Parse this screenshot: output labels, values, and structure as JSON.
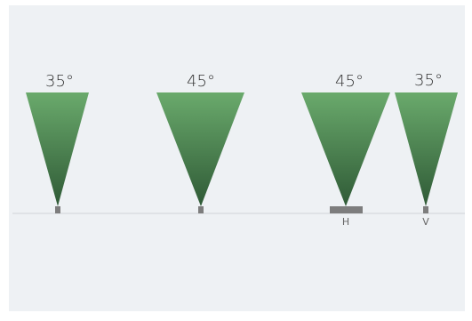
{
  "colors": {
    "background": "#eef1f4",
    "cone_top": "#6aaa6c",
    "cone_bottom": "#2f5a36",
    "base": "#7d7d7d",
    "ground": "#d0d4d8"
  },
  "beams": [
    {
      "angle_label": "35°",
      "base": "small",
      "sublabel": ""
    },
    {
      "angle_label": "45°",
      "base": "small",
      "sublabel": ""
    },
    {
      "angle_label": "45°",
      "base": "wide",
      "sublabel": "H"
    },
    {
      "angle_label": "35°",
      "base": "small",
      "sublabel": "V"
    }
  ]
}
